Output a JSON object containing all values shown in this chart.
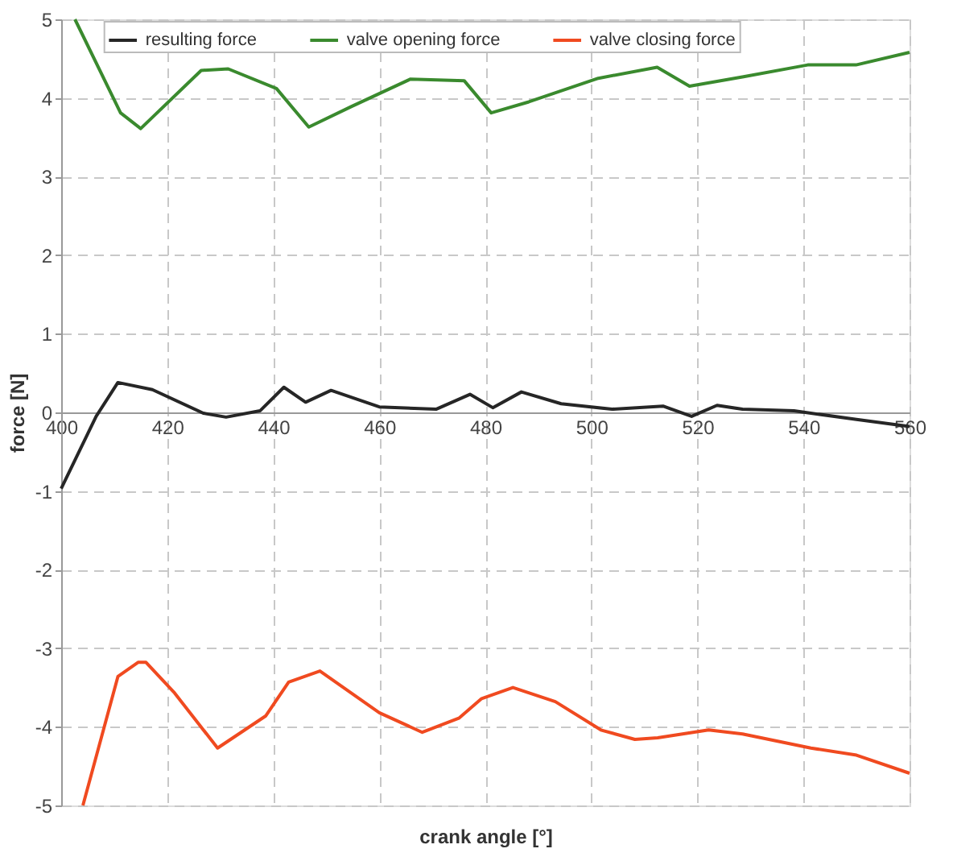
{
  "chart_data": {
    "type": "line",
    "xlabel": "crank angle [°]",
    "ylabel": "force [N]",
    "xlim": [
      400,
      560
    ],
    "xticks": [
      400,
      420,
      440,
      460,
      480,
      500,
      520,
      540,
      560
    ],
    "ylim": [
      -5,
      5
    ],
    "yticks": [
      -5,
      -4,
      -3,
      -2,
      -1,
      0,
      1,
      2,
      3,
      4,
      5
    ],
    "grid": true,
    "legend": "top",
    "marker": "none",
    "line_style": "solid",
    "series": [
      {
        "name": "resulting force",
        "color": "#262626",
        "x": [
          400,
          406.6,
          410.7,
          417.2,
          426.8,
          431.1,
          437.5,
          442,
          446.1,
          450.9,
          460,
          470.7,
          477.1,
          481.4,
          486.8,
          494.3,
          503.9,
          513.5,
          518.9,
          523.7,
          528.5,
          538.2,
          550,
          560
        ],
        "values": [
          -0.97,
          -0.05,
          0.38,
          0.29,
          -0.01,
          -0.06,
          0.02,
          0.32,
          0.13,
          0.28,
          0.07,
          0.04,
          0.23,
          0.06,
          0.26,
          0.11,
          0.04,
          0.08,
          -0.05,
          0.09,
          0.04,
          0.02,
          -0.09,
          -0.18
        ]
      },
      {
        "name": "valve opening force",
        "color": "#3a8a2e",
        "x": [
          402.6,
          411.2,
          415,
          426.4,
          431.5,
          440.6,
          446.7,
          454.7,
          465.9,
          476,
          481.1,
          488.2,
          501.3,
          512.4,
          518.5,
          528.7,
          540.8,
          549.9,
          560
        ],
        "values": [
          5.0,
          3.81,
          3.61,
          4.35,
          4.37,
          4.12,
          3.63,
          3.89,
          4.24,
          4.22,
          3.81,
          3.95,
          4.25,
          4.39,
          4.15,
          4.27,
          4.42,
          4.42,
          4.58
        ]
      },
      {
        "name": "valve closing force",
        "color": "#f04a20",
        "x": [
          404.1,
          410.7,
          414.5,
          416,
          421.4,
          429.5,
          438.6,
          442.9,
          448.8,
          460,
          468.1,
          475,
          479.3,
          485.2,
          493.2,
          501.8,
          508.2,
          512.5,
          522.1,
          528.5,
          541.4,
          550,
          560
        ],
        "values": [
          -5.0,
          -3.36,
          -3.18,
          -3.18,
          -3.57,
          -4.27,
          -3.86,
          -3.43,
          -3.29,
          -3.82,
          -4.07,
          -3.89,
          -3.64,
          -3.5,
          -3.68,
          -4.04,
          -4.16,
          -4.14,
          -4.04,
          -4.09,
          -4.27,
          -4.36,
          -4.59
        ]
      }
    ]
  }
}
